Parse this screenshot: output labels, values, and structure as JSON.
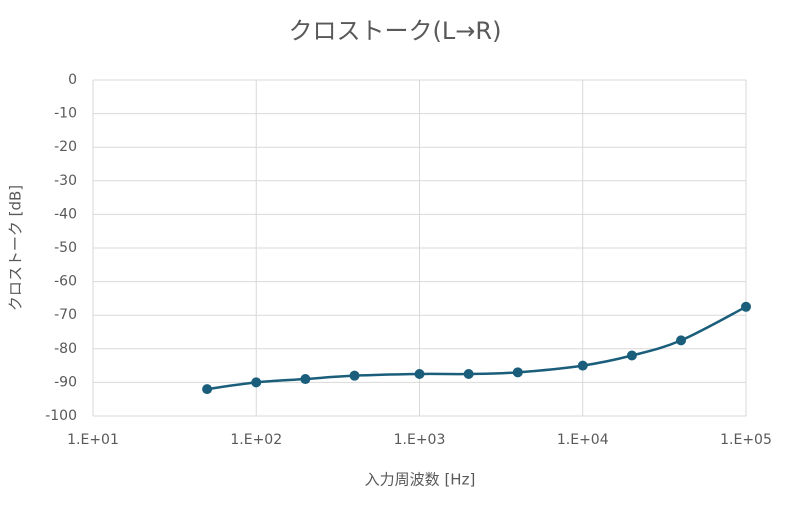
{
  "chart_data": {
    "type": "line",
    "title": "クロストーク(L→R)",
    "x_label": "入力周波数 [Hz]",
    "y_label": "クロストーク [dB]",
    "x": [
      50,
      100,
      200,
      400,
      1000,
      2000,
      4000,
      10000,
      20000,
      40000,
      100000
    ],
    "series": [
      {
        "color": "#1b5e7b",
        "values": [
          -92,
          -90,
          -89,
          -88,
          -87.5,
          -87.5,
          -87,
          -85,
          -82,
          -77.5,
          -67.5
        ]
      }
    ],
    "xscale": "log",
    "xlim": [
      10,
      100000
    ],
    "xticks": [
      {
        "value": 10,
        "label": "1.E+01"
      },
      {
        "value": 100,
        "label": "1.E+02"
      },
      {
        "value": 1000,
        "label": "1.E+03"
      },
      {
        "value": 10000,
        "label": "1.E+04"
      },
      {
        "value": 100000,
        "label": "1.E+05"
      }
    ],
    "ylim": [
      -100,
      0
    ],
    "yticks": [
      0,
      -10,
      -20,
      -30,
      -40,
      -50,
      -60,
      -70,
      -80,
      -90,
      -100
    ],
    "grid": true
  }
}
